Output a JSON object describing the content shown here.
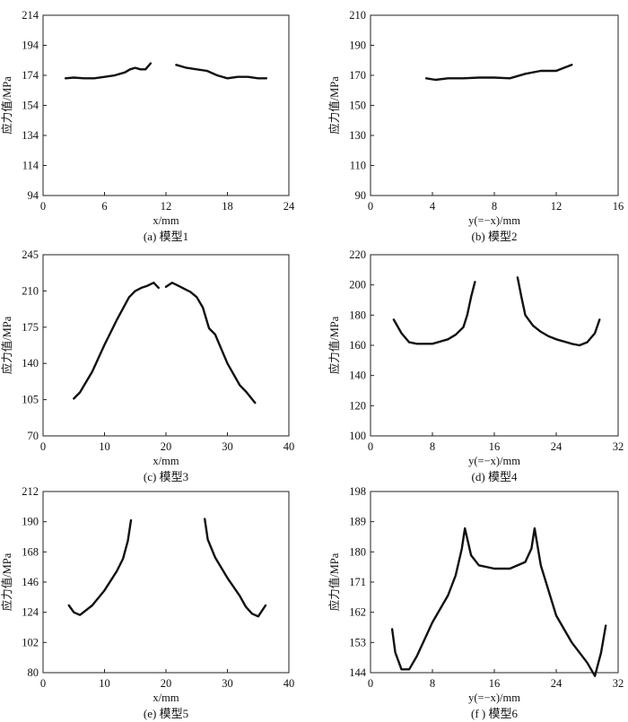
{
  "figure": {
    "description_labels": [
      "(a) 模型1",
      "(b) 模型2",
      "(c) 模型3",
      "(d) 模型4",
      "(e) 模型5",
      "(f) 模型6"
    ]
  },
  "chart_data": [
    {
      "type": "line",
      "caption": "(a) 模型1",
      "xlabel": "x/mm",
      "ylabel": "应力值/MPa",
      "xlim": [
        0,
        24
      ],
      "ylim": [
        94,
        214
      ],
      "xticks": [
        0,
        6,
        12,
        18,
        24
      ],
      "yticks": [
        94,
        114,
        134,
        154,
        174,
        194,
        214
      ],
      "series": [
        {
          "name": "left",
          "x": [
            2.2,
            3,
            4,
            5,
            6,
            7,
            8,
            8.5,
            9,
            9.5,
            10,
            10.5
          ],
          "y": [
            172,
            172.5,
            172,
            172,
            173,
            174,
            176,
            178,
            179,
            178,
            178,
            182
          ]
        },
        {
          "name": "right",
          "x": [
            13,
            14,
            15,
            16,
            17,
            18,
            19,
            20,
            21,
            21.8
          ],
          "y": [
            181,
            179,
            178,
            177,
            174,
            172,
            173,
            173,
            172,
            172
          ]
        }
      ]
    },
    {
      "type": "line",
      "caption": "(b) 模型2",
      "xlabel": "y(=−x)/mm",
      "ylabel": "应力值/MPa",
      "xlim": [
        0,
        16
      ],
      "ylim": [
        90,
        210
      ],
      "xticks": [
        0,
        4,
        8,
        12,
        16
      ],
      "yticks": [
        90,
        110,
        130,
        150,
        170,
        190,
        210
      ],
      "series": [
        {
          "name": "main",
          "x": [
            3.6,
            4.2,
            5,
            6,
            7,
            8,
            9,
            10,
            11,
            12,
            12.5,
            13
          ],
          "y": [
            168,
            167,
            168,
            168,
            168.5,
            168.5,
            168,
            171,
            173,
            173,
            175,
            177
          ]
        }
      ]
    },
    {
      "type": "line",
      "caption": "(c) 模型3",
      "xlabel": "x/mm",
      "ylabel": "应力值/MPa",
      "xlim": [
        0,
        40
      ],
      "ylim": [
        70,
        245
      ],
      "xticks": [
        0,
        10,
        20,
        30,
        40
      ],
      "yticks": [
        70,
        105,
        140,
        175,
        210,
        245
      ],
      "series": [
        {
          "name": "left",
          "x": [
            5,
            6,
            8,
            10,
            12,
            14,
            15,
            16,
            17,
            18,
            18.8
          ],
          "y": [
            106,
            112,
            132,
            158,
            182,
            204,
            210,
            213,
            215,
            218,
            213
          ]
        },
        {
          "name": "right",
          "x": [
            20,
            21,
            22,
            23,
            24,
            25,
            26,
            27,
            28,
            30,
            32,
            33,
            34.5
          ],
          "y": [
            214,
            218,
            215,
            212,
            209,
            204,
            194,
            174,
            168,
            140,
            119,
            113,
            102
          ]
        }
      ]
    },
    {
      "type": "line",
      "caption": "(d) 模型4",
      "xlabel": "y(=−x)/mm",
      "ylabel": "应力值/MPa",
      "xlim": [
        0,
        32
      ],
      "ylim": [
        100,
        220
      ],
      "xticks": [
        0,
        8,
        16,
        24,
        32
      ],
      "yticks": [
        100,
        120,
        140,
        160,
        180,
        200,
        220
      ],
      "series": [
        {
          "name": "left",
          "x": [
            3,
            4,
            5,
            6,
            8,
            10,
            11,
            12,
            12.5,
            13,
            13.5
          ],
          "y": [
            177,
            168,
            162,
            161,
            161,
            164,
            167,
            172,
            180,
            192,
            202
          ]
        },
        {
          "name": "right",
          "x": [
            19,
            19.5,
            20,
            21,
            22,
            23,
            24,
            26,
            27,
            28,
            29,
            29.6
          ],
          "y": [
            205,
            192,
            180,
            173,
            169,
            166,
            164,
            161,
            160,
            162,
            168,
            177
          ]
        }
      ]
    },
    {
      "type": "line",
      "caption": "(e) 模型5",
      "xlabel": "x/mm",
      "ylabel": "应力值/MPa",
      "xlim": [
        0,
        40
      ],
      "ylim": [
        80,
        212
      ],
      "xticks": [
        0,
        10,
        20,
        30,
        40
      ],
      "yticks": [
        80,
        102,
        124,
        146,
        168,
        190,
        212
      ],
      "series": [
        {
          "name": "left",
          "x": [
            4.2,
            5,
            6,
            8,
            10,
            12,
            13,
            13.8,
            14.3
          ],
          "y": [
            129,
            124,
            122,
            129,
            140,
            154,
            163,
            176,
            191
          ]
        },
        {
          "name": "right",
          "x": [
            26.3,
            26.8,
            28,
            30,
            32,
            33,
            34,
            35,
            36.2
          ],
          "y": [
            192,
            177,
            164,
            149,
            136,
            128,
            123,
            121,
            129
          ]
        }
      ]
    },
    {
      "type": "line",
      "caption": "(f ) 模型6",
      "xlabel": "y(=−x)/mm",
      "ylabel": "应力值/MPa",
      "xlim": [
        0,
        32
      ],
      "ylim": [
        144,
        198
      ],
      "xticks": [
        0,
        8,
        16,
        24,
        32
      ],
      "yticks": [
        144,
        153,
        162,
        171,
        180,
        189,
        198
      ],
      "series": [
        {
          "name": "main",
          "x": [
            2.8,
            3.2,
            4,
            5,
            6,
            8,
            10,
            11,
            11.8,
            12.2,
            13,
            14,
            16,
            18,
            20,
            20.8,
            21.2,
            22,
            24,
            26,
            28,
            29,
            29.8,
            30.4
          ],
          "y": [
            157,
            150,
            145,
            145,
            149,
            159,
            167,
            173,
            181,
            187,
            179,
            176,
            175,
            175,
            177,
            181,
            187,
            176,
            161,
            153,
            147,
            143,
            150,
            158
          ]
        }
      ]
    }
  ]
}
